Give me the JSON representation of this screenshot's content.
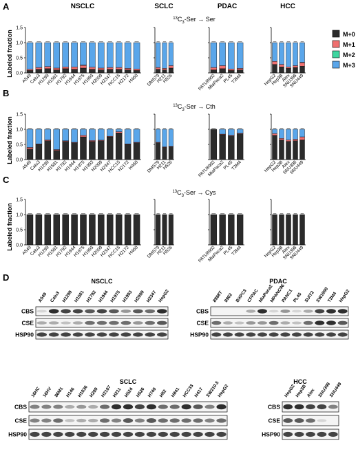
{
  "panel_letters": [
    "A",
    "B",
    "C",
    "D"
  ],
  "cancer_types": [
    "NSCLC",
    "SCLC",
    "PDAC",
    "HCC"
  ],
  "row_titles": [
    {
      "pre": "13",
      "sub": "3",
      "post": "-Ser → Ser"
    },
    {
      "pre": "13",
      "sub": "3",
      "post": "-Ser → Cth"
    },
    {
      "pre": "13",
      "sub": "3",
      "post": "-Ser → Cys"
    }
  ],
  "row_titles_prefix": "C",
  "legend": [
    {
      "label": "M+0",
      "color": "#2b2b2b"
    },
    {
      "label": "M+1",
      "color": "#f07070"
    },
    {
      "label": "M+2",
      "color": "#3ed6a0"
    },
    {
      "label": "M+3",
      "color": "#5aa6ea"
    }
  ],
  "ylabel": "Labeled fraction",
  "yticks": [
    "0.0",
    "0.5",
    "1.0",
    "1.5"
  ],
  "chart_data": [
    {
      "type": "bar",
      "stacked": true,
      "title": "13C3-Ser → Ser",
      "ylabel": "Labeled fraction",
      "ylim": [
        0,
        1.5
      ],
      "groups": [
        {
          "name": "NSCLC",
          "categories": [
            "A549",
            "Calu3",
            "H1299",
            "H1581",
            "H1792",
            "H1944",
            "H1975",
            "H1993",
            "H2009",
            "H2347",
            "HCC15",
            "H2172",
            "H460"
          ],
          "series": [
            {
              "name": "M+0",
              "values": [
                0.08,
                0.12,
                0.14,
                0.1,
                0.14,
                0.12,
                0.16,
                0.12,
                0.1,
                0.12,
                0.12,
                0.1,
                0.08
              ]
            },
            {
              "name": "M+1",
              "values": [
                0.04,
                0.06,
                0.07,
                0.06,
                0.06,
                0.08,
                0.09,
                0.07,
                0.06,
                0.06,
                0.06,
                0.05,
                0.05
              ]
            },
            {
              "name": "M+2",
              "values": [
                0,
                0,
                0,
                0,
                0,
                0,
                0.01,
                0,
                0,
                0,
                0,
                0,
                0
              ]
            },
            {
              "name": "M+3",
              "values": [
                0.88,
                0.82,
                0.79,
                0.84,
                0.8,
                0.8,
                0.74,
                0.81,
                0.84,
                0.82,
                0.82,
                0.85,
                0.87
              ]
            }
          ]
        },
        {
          "name": "SCLC",
          "categories": [
            "DMS79",
            "H211",
            "H526"
          ],
          "series": [
            {
              "name": "M+0",
              "values": [
                0.12,
                0.1,
                0.16
              ]
            },
            {
              "name": "M+1",
              "values": [
                0.06,
                0.05,
                0.08
              ]
            },
            {
              "name": "M+2",
              "values": [
                0,
                0,
                0
              ]
            },
            {
              "name": "M+3",
              "values": [
                0.82,
                0.85,
                0.76
              ]
            }
          ]
        },
        {
          "name": "PDAC",
          "categories": [
            "PATU8902",
            "MiaPaca2",
            "PL45",
            "T3M4"
          ],
          "series": [
            {
              "name": "M+0",
              "values": [
                0.1,
                0.14,
                0.08,
                0.1
              ]
            },
            {
              "name": "M+1",
              "values": [
                0.08,
                0.1,
                0.05,
                0.05
              ]
            },
            {
              "name": "M+2",
              "values": [
                0,
                0,
                0,
                0
              ]
            },
            {
              "name": "M+3",
              "values": [
                0.82,
                0.76,
                0.87,
                0.85
              ]
            }
          ]
        },
        {
          "name": "HCC",
          "categories": [
            "HepG2",
            "Hep3B",
            "Alex",
            "SNU398",
            "SNU449"
          ],
          "series": [
            {
              "name": "M+0",
              "values": [
                0.28,
                0.2,
                0.15,
                0.18,
                0.22
              ]
            },
            {
              "name": "M+1",
              "values": [
                0.1,
                0.08,
                0.05,
                0.06,
                0.12
              ]
            },
            {
              "name": "M+2",
              "values": [
                0,
                0,
                0,
                0,
                0.01
              ]
            },
            {
              "name": "M+3",
              "values": [
                0.62,
                0.72,
                0.8,
                0.76,
                0.65
              ]
            }
          ]
        }
      ]
    },
    {
      "type": "bar",
      "stacked": true,
      "title": "13C3-Ser → Cth",
      "ylabel": "Labeled fraction",
      "ylim": [
        0,
        1.5
      ],
      "groups": [
        {
          "name": "NSCLC",
          "categories": [
            "A549",
            "Calu3",
            "H1299",
            "H1581",
            "H1792",
            "H1944",
            "H1975",
            "H1993",
            "H2009",
            "H2347",
            "HCC15",
            "H2172",
            "H460"
          ],
          "series": [
            {
              "name": "M+0",
              "values": [
                0.35,
                0.5,
                0.62,
                0.3,
                0.6,
                0.55,
                0.75,
                0.6,
                0.62,
                0.75,
                0.88,
                0.5,
                0.55
              ]
            },
            {
              "name": "M+1",
              "values": [
                0.05,
                0.02,
                0.03,
                0.03,
                0.02,
                0.02,
                0.05,
                0.03,
                0.02,
                0.02,
                0.04,
                0.02,
                0.02
              ]
            },
            {
              "name": "M+2",
              "values": [
                0,
                0,
                0,
                0,
                0,
                0,
                0,
                0,
                0,
                0,
                0,
                0,
                0
              ]
            },
            {
              "name": "M+3",
              "values": [
                0.6,
                0.48,
                0.35,
                0.67,
                0.38,
                0.43,
                0.2,
                0.37,
                0.36,
                0.23,
                0.08,
                0.48,
                0.43
              ]
            }
          ]
        },
        {
          "name": "SCLC",
          "categories": [
            "DMS79",
            "H211",
            "H526"
          ],
          "series": [
            {
              "name": "M+0",
              "values": [
                0.55,
                0.4,
                0.42
              ]
            },
            {
              "name": "M+1",
              "values": [
                0.02,
                0.02,
                0.02
              ]
            },
            {
              "name": "M+2",
              "values": [
                0,
                0,
                0
              ]
            },
            {
              "name": "M+3",
              "values": [
                0.43,
                0.58,
                0.56
              ]
            }
          ]
        },
        {
          "name": "PDAC",
          "categories": [
            "PATU8902",
            "MiaPaca2",
            "PL45",
            "T3M4"
          ],
          "series": [
            {
              "name": "M+0",
              "values": [
                1.0,
                0.82,
                0.78,
                0.85
              ]
            },
            {
              "name": "M+1",
              "values": [
                0,
                0.02,
                0.02,
                0.02
              ]
            },
            {
              "name": "M+2",
              "values": [
                0,
                0,
                0,
                0
              ]
            },
            {
              "name": "M+3",
              "values": [
                0,
                0.16,
                0.2,
                0.13
              ]
            }
          ]
        },
        {
          "name": "HCC",
          "categories": [
            "HepG2",
            "Hep3B",
            "Alex",
            "SNU398",
            "SNU449"
          ],
          "series": [
            {
              "name": "M+0",
              "values": [
                0.8,
                0.65,
                0.6,
                0.62,
                0.65
              ]
            },
            {
              "name": "M+1",
              "values": [
                0.06,
                0.05,
                0.05,
                0.05,
                0.1
              ]
            },
            {
              "name": "M+2",
              "values": [
                0,
                0,
                0,
                0,
                0
              ]
            },
            {
              "name": "M+3",
              "values": [
                0.14,
                0.3,
                0.35,
                0.33,
                0.25
              ]
            }
          ]
        }
      ]
    },
    {
      "type": "bar",
      "stacked": true,
      "title": "13C3-Ser → Cys",
      "ylabel": "Labeled fraction",
      "ylim": [
        0,
        1.5
      ],
      "groups": [
        {
          "name": "NSCLC",
          "categories": [
            "A549",
            "Calu3",
            "H1299",
            "H1581",
            "H1792",
            "H1944",
            "H1975",
            "H1993",
            "H2009",
            "H2347",
            "HCC15",
            "H2172",
            "H460"
          ],
          "series": [
            {
              "name": "M+0",
              "values": [
                1,
                1,
                1,
                1,
                1,
                1,
                1,
                1,
                1,
                1,
                1,
                1,
                1
              ]
            },
            {
              "name": "M+1",
              "values": [
                0,
                0,
                0,
                0,
                0,
                0,
                0,
                0,
                0,
                0,
                0,
                0,
                0
              ]
            },
            {
              "name": "M+2",
              "values": [
                0,
                0,
                0,
                0,
                0,
                0,
                0,
                0,
                0,
                0,
                0,
                0,
                0
              ]
            },
            {
              "name": "M+3",
              "values": [
                0,
                0,
                0,
                0,
                0,
                0,
                0,
                0,
                0,
                0,
                0,
                0,
                0
              ]
            }
          ]
        },
        {
          "name": "SCLC",
          "categories": [
            "DMS79",
            "H211",
            "H526"
          ],
          "series": [
            {
              "name": "M+0",
              "values": [
                1,
                1,
                1
              ]
            },
            {
              "name": "M+1",
              "values": [
                0,
                0,
                0
              ]
            },
            {
              "name": "M+2",
              "values": [
                0,
                0,
                0
              ]
            },
            {
              "name": "M+3",
              "values": [
                0,
                0,
                0
              ]
            }
          ]
        },
        {
          "name": "PDAC",
          "categories": [
            "PATU8902",
            "MiaPaca2",
            "PL45",
            "T3M4"
          ],
          "series": [
            {
              "name": "M+0",
              "values": [
                1,
                1,
                1,
                1
              ]
            },
            {
              "name": "M+1",
              "values": [
                0,
                0,
                0,
                0
              ]
            },
            {
              "name": "M+2",
              "values": [
                0,
                0,
                0,
                0
              ]
            },
            {
              "name": "M+3",
              "values": [
                0,
                0,
                0,
                0
              ]
            }
          ]
        },
        {
          "name": "HCC",
          "categories": [
            "HepG2",
            "Hep3B",
            "Alex",
            "SNU398",
            "SNU449"
          ],
          "series": [
            {
              "name": "M+0",
              "values": [
                1,
                1,
                1,
                1,
                1
              ]
            },
            {
              "name": "M+1",
              "values": [
                0,
                0,
                0,
                0,
                0
              ]
            },
            {
              "name": "M+2",
              "values": [
                0,
                0,
                0,
                0,
                0
              ]
            },
            {
              "name": "M+3",
              "values": [
                0,
                0,
                0,
                0,
                0
              ]
            }
          ]
        }
      ]
    }
  ],
  "blots": [
    {
      "title": "NSCLC",
      "lanes": [
        "A549",
        "Calu3",
        "H1299",
        "H1581",
        "H1792",
        "H1944",
        "H1975",
        "H1993",
        "H2009",
        "H2347",
        "HepG2"
      ],
      "rows": [
        {
          "label": "CBS",
          "intensity": [
            0.1,
            0.9,
            0.8,
            0.8,
            0.7,
            0.8,
            0.7,
            0.4,
            0.7,
            0.6,
            0.9
          ]
        },
        {
          "label": "CSE",
          "intensity": [
            0.3,
            0.3,
            0.2,
            0.3,
            0.6,
            0.6,
            0.6,
            0.6,
            0.4,
            0.6,
            0.7
          ]
        },
        {
          "label": "HSP90",
          "intensity": [
            0.8,
            0.8,
            0.8,
            0.8,
            0.8,
            0.8,
            0.8,
            0.8,
            0.8,
            0.8,
            0.8
          ]
        }
      ]
    },
    {
      "title": "PDAC",
      "lanes": [
        "8988T",
        "8902",
        "BXPC3",
        "CFPAC",
        "MiaPaca2",
        "MPANC96",
        "PANC1",
        "PL45",
        "SUIT2",
        "SW1990",
        "T3M4",
        "HepG2"
      ],
      "rows": [
        {
          "label": "CBS",
          "intensity": [
            0.0,
            0.0,
            0.0,
            0.3,
            0.9,
            0.1,
            0.4,
            0.1,
            0.3,
            0.8,
            0.9,
            0.9
          ]
        },
        {
          "label": "CSE",
          "intensity": [
            0.6,
            0.3,
            0.2,
            0.4,
            0.4,
            0.6,
            0.3,
            0.2,
            0.6,
            0.9,
            0.9,
            0.7
          ]
        },
        {
          "label": "HSP90",
          "intensity": [
            0.8,
            0.8,
            0.8,
            0.8,
            0.8,
            0.8,
            0.8,
            0.8,
            0.8,
            0.8,
            0.8,
            0.8
          ]
        }
      ]
    },
    {
      "title": "SCLC",
      "lanes": [
        "16HC",
        "16HV",
        "86M1",
        "H146",
        "H1836",
        "H209",
        "H2107",
        "H211",
        "H524",
        "H526",
        "H740",
        "H82",
        "H841",
        "HCC33",
        "N417",
        "SW210.5",
        "HepG2"
      ],
      "rows": [
        {
          "label": "CBS",
          "intensity": [
            0.5,
            0.5,
            0.5,
            0.3,
            0.4,
            0.3,
            0.6,
            0.9,
            0.9,
            0.8,
            0.9,
            0.6,
            0.6,
            0.9,
            0.7,
            0.5,
            0.9
          ]
        },
        {
          "label": "CSE",
          "intensity": [
            0.5,
            0.5,
            0.6,
            0.2,
            0.3,
            0.3,
            0.6,
            0.5,
            0.7,
            0.5,
            0.7,
            0.6,
            0.6,
            0.6,
            0.6,
            0.5,
            0.6
          ]
        },
        {
          "label": "HSP90",
          "intensity": [
            0.8,
            0.8,
            0.8,
            0.8,
            0.8,
            0.8,
            0.8,
            0.8,
            0.8,
            0.8,
            0.8,
            0.8,
            0.8,
            0.8,
            0.8,
            0.8,
            0.8
          ]
        }
      ]
    },
    {
      "title": "HCC",
      "lanes": [
        "HepG2",
        "Hep3B",
        "Alex",
        "SNU398",
        "SNU449"
      ],
      "rows": [
        {
          "label": "CBS",
          "intensity": [
            0.9,
            0.9,
            0.8,
            0.8,
            0.5
          ]
        },
        {
          "label": "CSE",
          "intensity": [
            0.7,
            0.7,
            0.6,
            0.1,
            0.0
          ]
        },
        {
          "label": "HSP90",
          "intensity": [
            0.8,
            0.8,
            0.8,
            0.8,
            0.8
          ]
        }
      ]
    }
  ]
}
